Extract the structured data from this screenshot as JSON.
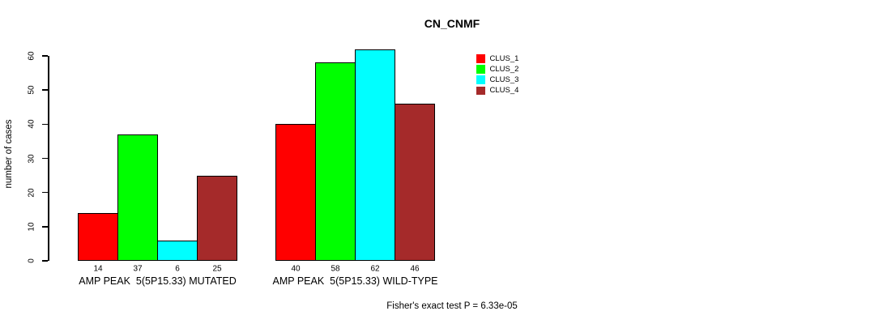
{
  "chart_data": {
    "type": "bar",
    "title": "CN_CNMF",
    "ylabel": "number of cases",
    "ylim": [
      0,
      60
    ],
    "yticks": [
      0,
      10,
      20,
      30,
      40,
      50,
      60
    ],
    "grid": false,
    "legend_position": "top-right",
    "categories": [
      "AMP PEAK  5(5P15.33) MUTATED",
      "AMP PEAK  5(5P15.33) WILD-TYPE"
    ],
    "series": [
      {
        "name": "CLUS_1",
        "color": "#FF0000",
        "values": [
          14,
          40
        ]
      },
      {
        "name": "CLUS_2",
        "color": "#00FF00",
        "values": [
          37,
          58
        ]
      },
      {
        "name": "CLUS_3",
        "color": "#00FFFF",
        "values": [
          6,
          62
        ]
      },
      {
        "name": "CLUS_4",
        "color": "#A52A2A",
        "values": [
          25,
          46
        ]
      }
    ],
    "bar_value_labels": [
      [
        14,
        37,
        6,
        25
      ],
      [
        40,
        58,
        62,
        46
      ]
    ],
    "annotation": "Fisher's exact test P = 6.33e-05",
    "axis_color": "#000000",
    "bar_border_color": "#000000"
  }
}
